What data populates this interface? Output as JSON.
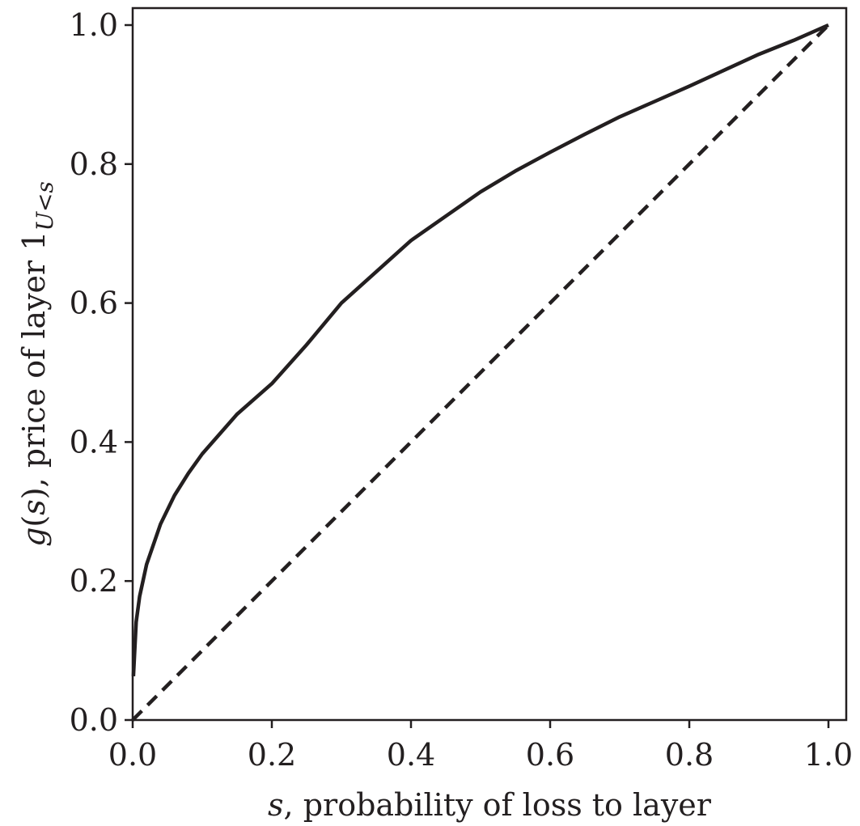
{
  "chart_data": {
    "type": "line",
    "xlabel": {
      "var": "s",
      "rest": ", probability of loss to layer"
    },
    "ylabel": {
      "var1": "g",
      "mid1": "(",
      "var2": "s",
      "mid2": "), price of layer 1",
      "sub": "U<s"
    },
    "xlim": [
      0.0,
      1.0
    ],
    "ylim": [
      0.0,
      1.0
    ],
    "xticks": [
      "0.0",
      "0.2",
      "0.4",
      "0.6",
      "0.8",
      "1.0"
    ],
    "yticks": [
      "0.0",
      "0.2",
      "0.4",
      "0.6",
      "0.8",
      "1.0"
    ],
    "grid": false,
    "series": [
      {
        "style": "solid",
        "color": "#231f20",
        "x": [
          0.001,
          0.005,
          0.01,
          0.02,
          0.04,
          0.06,
          0.08,
          0.1,
          0.15,
          0.2,
          0.25,
          0.3,
          0.35,
          0.4,
          0.45,
          0.5,
          0.55,
          0.6,
          0.65,
          0.7,
          0.75,
          0.8,
          0.85,
          0.9,
          0.95,
          1.0
        ],
        "y": [
          0.063,
          0.141,
          0.178,
          0.224,
          0.282,
          0.323,
          0.355,
          0.383,
          0.44,
          0.484,
          0.54,
          0.6,
          0.645,
          0.69,
          0.725,
          0.76,
          0.79,
          0.817,
          0.843,
          0.868,
          0.89,
          0.912,
          0.935,
          0.958,
          0.978,
          1.0
        ]
      },
      {
        "style": "dashed",
        "color": "#231f20",
        "x": [
          0.0,
          1.0
        ],
        "y": [
          0.0,
          1.0
        ]
      }
    ]
  }
}
